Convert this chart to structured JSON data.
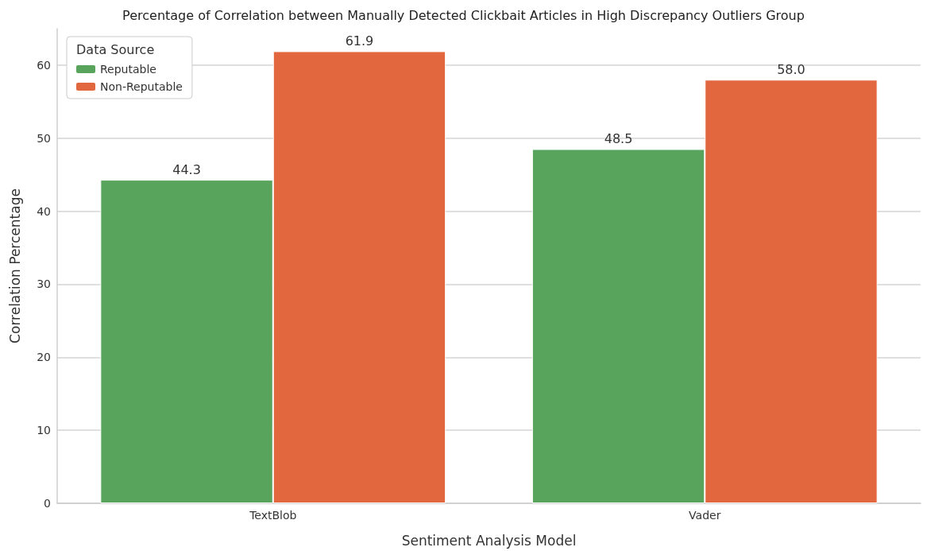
{
  "chart_data": {
    "type": "bar",
    "title": "Percentage of Correlation between Manually Detected Clickbait Articles in High Discrepancy Outliers Group",
    "xlabel": "Sentiment Analysis Model",
    "ylabel": "Correlation Percentage",
    "legend_title": "Data Source",
    "categories": [
      "TextBlob",
      "Vader"
    ],
    "series": [
      {
        "name": "Reputable",
        "color": "#59a45c",
        "values": [
          44.3,
          48.5
        ],
        "value_labels": [
          "44.3",
          "48.5"
        ]
      },
      {
        "name": "Non-Reputable",
        "color": "#e2673f",
        "values": [
          61.9,
          58.0
        ],
        "value_labels": [
          "61.9",
          "58.0"
        ]
      }
    ],
    "ylim": [
      0,
      65
    ],
    "yticks": [
      0,
      10,
      20,
      30,
      40,
      50,
      60
    ],
    "grid": "y",
    "legend": "top left"
  }
}
